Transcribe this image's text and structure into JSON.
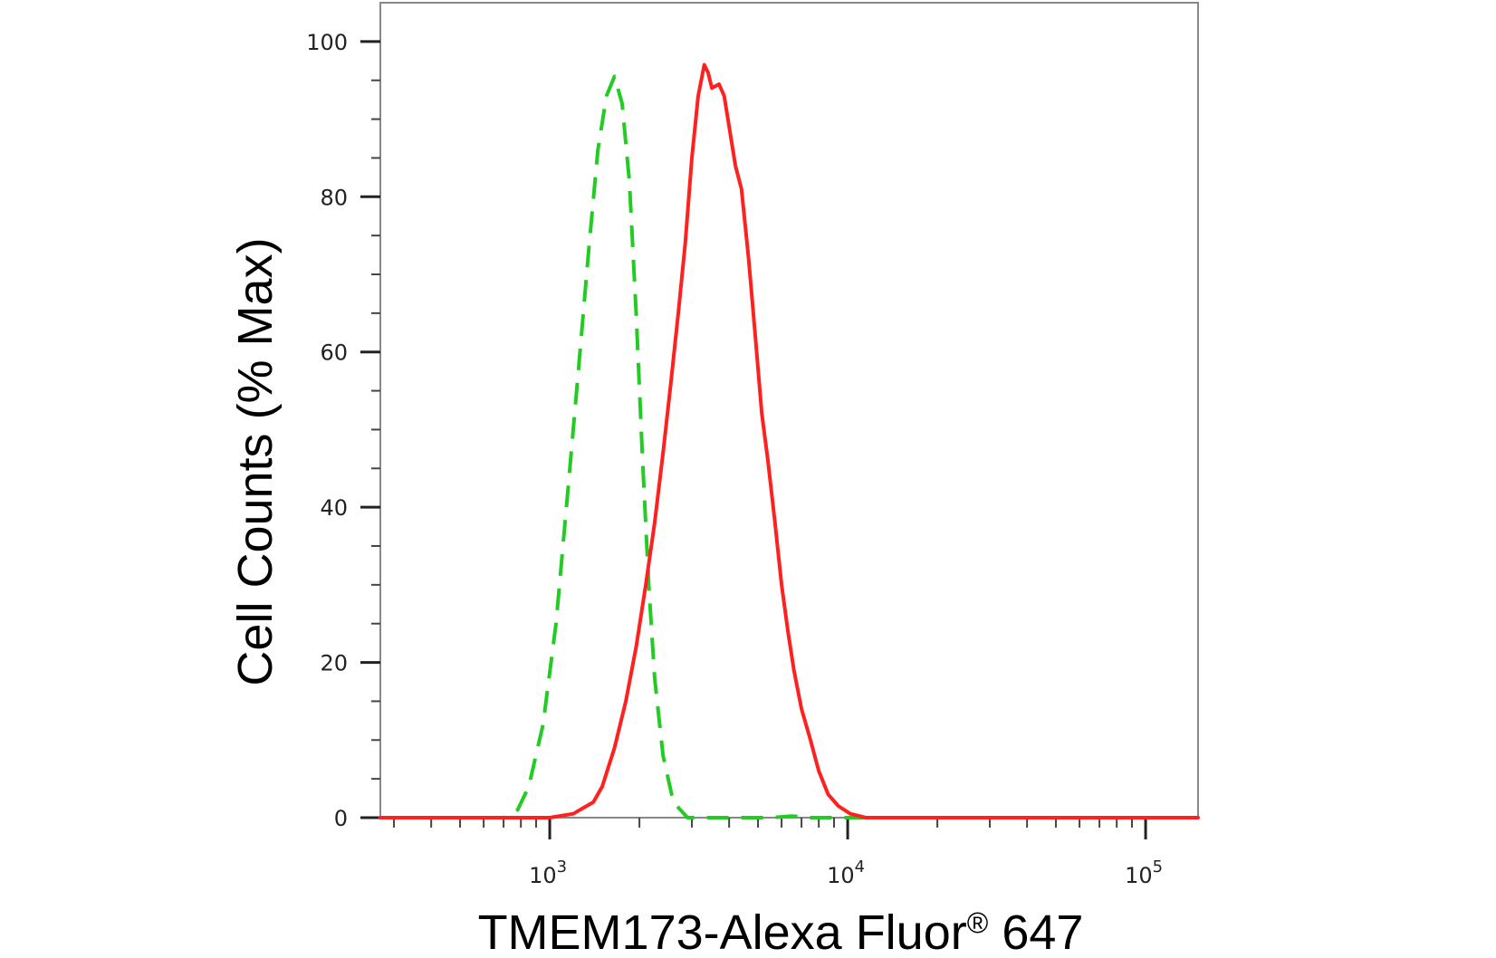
{
  "chart_data": {
    "type": "line",
    "title": "",
    "xlabel": "TMEM173-Alexa Fluor® 647",
    "ylabel": "Cell Counts (% Max)",
    "x_scale": "log",
    "xlim": [
      270,
      150000
    ],
    "ylim": [
      0,
      105
    ],
    "grid": false,
    "legend": "none",
    "x_major_ticks": [
      {
        "value": 1000,
        "base": "10",
        "exp": "3"
      },
      {
        "value": 10000,
        "base": "10",
        "exp": "4"
      },
      {
        "value": 100000,
        "base": "10",
        "exp": "5"
      }
    ],
    "y_ticks": [
      0,
      20,
      40,
      60,
      80,
      100
    ],
    "series": [
      {
        "color": "#22cc22",
        "dash": "dashed",
        "points": [
          [
            270,
            0
          ],
          [
            700,
            0
          ],
          [
            780,
            1
          ],
          [
            850,
            4
          ],
          [
            950,
            12
          ],
          [
            1050,
            25
          ],
          [
            1150,
            42
          ],
          [
            1250,
            58
          ],
          [
            1350,
            73
          ],
          [
            1450,
            86
          ],
          [
            1550,
            93
          ],
          [
            1650,
            95.5
          ],
          [
            1750,
            92
          ],
          [
            1850,
            82
          ],
          [
            1950,
            65
          ],
          [
            2050,
            46
          ],
          [
            2150,
            30
          ],
          [
            2250,
            18
          ],
          [
            2400,
            8
          ],
          [
            2600,
            2
          ],
          [
            2900,
            0
          ],
          [
            5500,
            0
          ],
          [
            6500,
            0.2
          ],
          [
            7500,
            0
          ],
          [
            150000,
            0
          ]
        ]
      },
      {
        "color": "#ff2020",
        "dash": "solid",
        "points": [
          [
            270,
            0
          ],
          [
            1000,
            0
          ],
          [
            1200,
            0.5
          ],
          [
            1400,
            2
          ],
          [
            1500,
            4
          ],
          [
            1650,
            9
          ],
          [
            1800,
            15
          ],
          [
            1950,
            22
          ],
          [
            2100,
            30
          ],
          [
            2250,
            38
          ],
          [
            2400,
            47
          ],
          [
            2550,
            56
          ],
          [
            2700,
            65
          ],
          [
            2850,
            74
          ],
          [
            3000,
            85
          ],
          [
            3150,
            93
          ],
          [
            3300,
            97
          ],
          [
            3400,
            96
          ],
          [
            3500,
            94
          ],
          [
            3700,
            94.5
          ],
          [
            3850,
            93
          ],
          [
            4000,
            89
          ],
          [
            4200,
            84
          ],
          [
            4400,
            81
          ],
          [
            4650,
            72
          ],
          [
            4900,
            62
          ],
          [
            5150,
            52
          ],
          [
            5400,
            46
          ],
          [
            5700,
            38
          ],
          [
            6000,
            30
          ],
          [
            6300,
            24
          ],
          [
            6600,
            19
          ],
          [
            7000,
            14
          ],
          [
            7500,
            10
          ],
          [
            8000,
            6
          ],
          [
            8600,
            3
          ],
          [
            9300,
            1.5
          ],
          [
            10200,
            0.5
          ],
          [
            11500,
            0
          ],
          [
            150000,
            0
          ]
        ]
      }
    ]
  }
}
